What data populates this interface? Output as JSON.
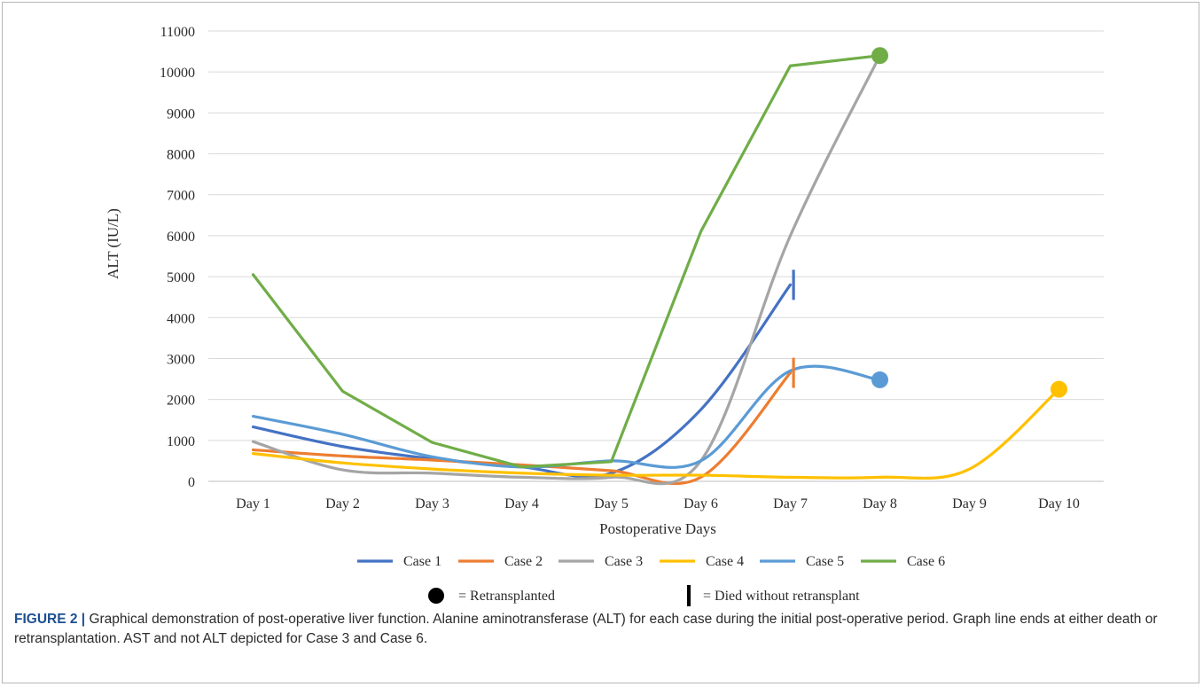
{
  "chart_data": {
    "type": "line",
    "ylabel": "ALT (IU/L)",
    "xlabel": "Postoperative Days",
    "ylim": [
      0,
      11000
    ],
    "yticks": [
      0,
      1000,
      2000,
      3000,
      4000,
      5000,
      6000,
      7000,
      8000,
      9000,
      10000,
      11000
    ],
    "categories": [
      "Day 1",
      "Day 2",
      "Day 3",
      "Day 4",
      "Day 5",
      "Day 6",
      "Day 7",
      "Day 8",
      "Day 9",
      "Day 10"
    ],
    "grid": true,
    "legend_position": "bottom",
    "series": [
      {
        "name": "Case 1",
        "color": "#4472c4",
        "smooth": true,
        "values": [
          1330,
          850,
          550,
          350,
          200,
          1750,
          4800,
          null,
          null,
          null
        ],
        "end": "died"
      },
      {
        "name": "Case 2",
        "color": "#ed7d31",
        "smooth": true,
        "values": [
          770,
          620,
          520,
          400,
          260,
          100,
          2650,
          null,
          null,
          null
        ],
        "end": "died"
      },
      {
        "name": "Case 3",
        "color": "#a5a5a5",
        "smooth": true,
        "values": [
          970,
          280,
          200,
          100,
          100,
          500,
          6000,
          10400,
          null,
          null
        ],
        "end": null
      },
      {
        "name": "Case 4",
        "color": "#ffc000",
        "smooth": true,
        "values": [
          680,
          450,
          300,
          200,
          150,
          150,
          100,
          100,
          300,
          2250
        ],
        "end": "retransplanted"
      },
      {
        "name": "Case 5",
        "color": "#5b9bd5",
        "smooth": true,
        "values": [
          1590,
          1150,
          600,
          350,
          500,
          500,
          2700,
          2480,
          null,
          null
        ],
        "end": "retransplanted"
      },
      {
        "name": "Case 6",
        "color": "#70ad47",
        "smooth": false,
        "values": [
          5050,
          2200,
          950,
          350,
          480,
          6100,
          10150,
          10400,
          null,
          null
        ],
        "end": "retransplanted"
      }
    ],
    "key": {
      "retransplanted": "= Retransplanted",
      "died": "= Died without retransplant"
    }
  },
  "caption": {
    "lead": "FIGURE 2 |",
    "text": " Graphical demonstration of post-operative liver function. Alanine aminotransferase (ALT) for each case during the initial post-operative period. Graph line ends at either death or retransplantation. AST and not ALT depicted for Case 3 and Case 6."
  }
}
